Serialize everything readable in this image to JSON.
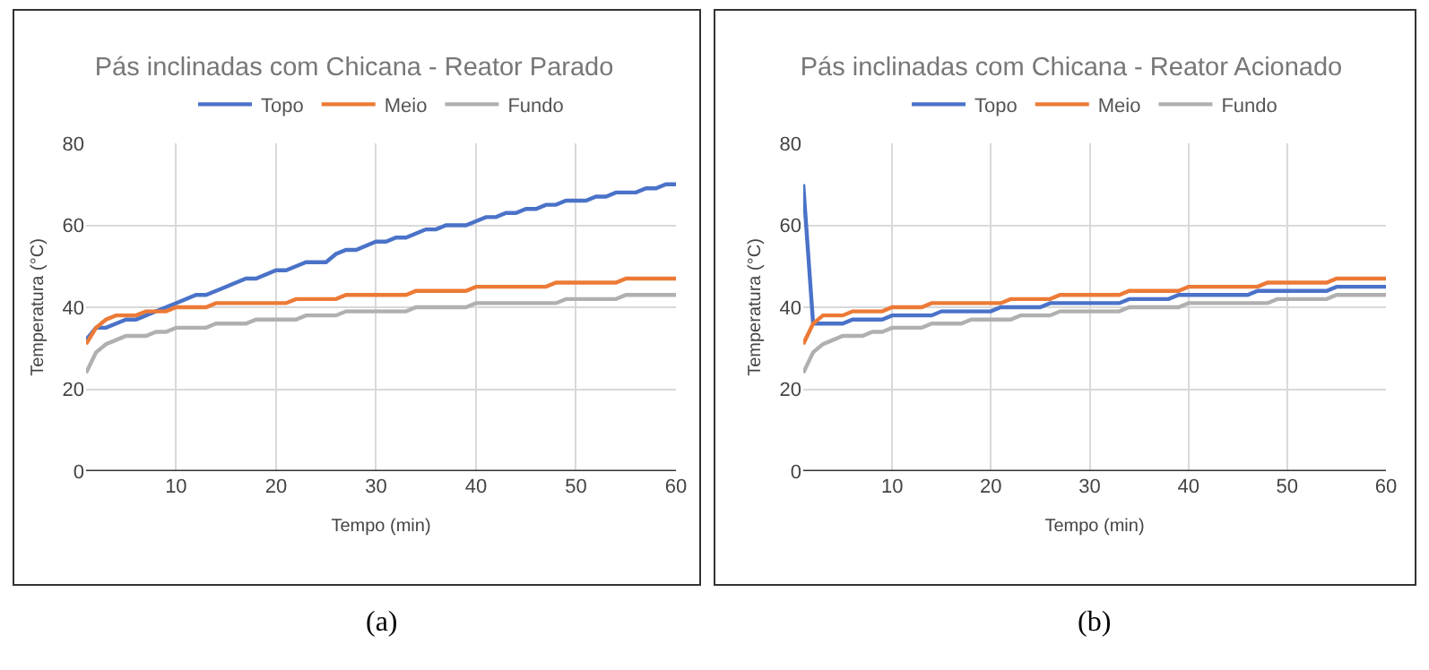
{
  "chart_data": [
    {
      "type": "line",
      "title": "Pás inclinadas com Chicana - Reator Parado",
      "xlabel": "Tempo (min)",
      "ylabel": "Temperatura (°C)",
      "annotations": [
        "(a)"
      ],
      "xlim": [
        1,
        60
      ],
      "xticks": [
        10,
        20,
        30,
        40,
        50,
        60
      ],
      "ylim": [
        0,
        80
      ],
      "yticks": [
        0,
        20,
        40,
        60,
        80
      ],
      "grid": true,
      "legend": "top",
      "series": [
        {
          "name": "Topo",
          "color": "#4a72c8",
          "x": [
            1,
            2,
            3,
            4,
            5,
            6,
            7,
            8,
            9,
            10,
            12,
            13,
            14,
            16,
            17,
            18,
            20,
            21,
            22,
            23,
            25,
            26,
            27,
            28,
            30,
            31,
            32,
            33,
            35,
            36,
            37,
            39,
            40,
            41,
            42,
            43,
            44,
            45,
            46,
            47,
            48,
            49,
            51,
            52,
            53,
            54,
            56,
            57,
            58,
            59,
            60
          ],
          "values": [
            32,
            35,
            35,
            36,
            37,
            37,
            38,
            39,
            40,
            41,
            43,
            43,
            44,
            46,
            47,
            47,
            49,
            49,
            50,
            51,
            51,
            53,
            54,
            54,
            56,
            56,
            57,
            57,
            59,
            59,
            60,
            60,
            61,
            62,
            62,
            63,
            63,
            64,
            64,
            65,
            65,
            66,
            66,
            67,
            67,
            68,
            68,
            69,
            69,
            70,
            70
          ]
        },
        {
          "name": "Meio",
          "color": "#ec7a36",
          "x": [
            1,
            2,
            3,
            4,
            6,
            7,
            9,
            10,
            13,
            14,
            21,
            22,
            26,
            27,
            33,
            34,
            39,
            40,
            47,
            48,
            54,
            55,
            60
          ],
          "values": [
            31,
            35,
            37,
            38,
            38,
            39,
            39,
            40,
            40,
            41,
            41,
            42,
            42,
            43,
            43,
            44,
            44,
            45,
            45,
            46,
            46,
            47,
            47
          ]
        },
        {
          "name": "Fundo",
          "color": "#b0b0b0",
          "x": [
            1,
            2,
            3,
            4,
            5,
            7,
            8,
            9,
            10,
            13,
            14,
            17,
            18,
            22,
            23,
            26,
            27,
            33,
            34,
            39,
            40,
            48,
            49,
            54,
            55,
            60
          ],
          "values": [
            24,
            29,
            31,
            32,
            33,
            33,
            34,
            34,
            35,
            35,
            36,
            36,
            37,
            37,
            38,
            38,
            39,
            39,
            40,
            40,
            41,
            41,
            42,
            42,
            43,
            43
          ]
        }
      ]
    },
    {
      "type": "line",
      "title": "Pás inclinadas com Chicana - Reator Acionado",
      "xlabel": "Tempo (min)",
      "ylabel": "Temperatura (°C)",
      "annotations": [
        "(b)"
      ],
      "xlim": [
        1,
        60
      ],
      "xticks": [
        10,
        20,
        30,
        40,
        50,
        60
      ],
      "ylim": [
        0,
        80
      ],
      "yticks": [
        0,
        20,
        40,
        60,
        80
      ],
      "grid": true,
      "legend": "top",
      "series": [
        {
          "name": "Topo",
          "color": "#4a72c8",
          "x": [
            1,
            2,
            5,
            6,
            9,
            10,
            14,
            15,
            20,
            21,
            25,
            26,
            33,
            34,
            38,
            39,
            46,
            47,
            54,
            55,
            60
          ],
          "values": [
            70,
            36,
            36,
            37,
            37,
            38,
            38,
            39,
            39,
            40,
            40,
            41,
            41,
            42,
            42,
            43,
            43,
            44,
            44,
            45,
            45
          ]
        },
        {
          "name": "Meio",
          "color": "#ec7a36",
          "x": [
            1,
            2,
            3,
            5,
            6,
            9,
            10,
            13,
            14,
            21,
            22,
            26,
            27,
            33,
            34,
            39,
            40,
            47,
            48,
            54,
            55,
            60
          ],
          "values": [
            31,
            36,
            38,
            38,
            39,
            39,
            40,
            40,
            41,
            41,
            42,
            42,
            43,
            43,
            44,
            44,
            45,
            45,
            46,
            46,
            47,
            47
          ]
        },
        {
          "name": "Fundo",
          "color": "#b0b0b0",
          "x": [
            1,
            2,
            3,
            4,
            5,
            7,
            8,
            9,
            10,
            13,
            14,
            17,
            18,
            22,
            23,
            26,
            27,
            33,
            34,
            39,
            40,
            48,
            49,
            54,
            55,
            60
          ],
          "values": [
            24,
            29,
            31,
            32,
            33,
            33,
            34,
            34,
            35,
            35,
            36,
            36,
            37,
            37,
            38,
            38,
            39,
            39,
            40,
            40,
            41,
            41,
            42,
            42,
            43,
            43
          ]
        }
      ]
    }
  ]
}
